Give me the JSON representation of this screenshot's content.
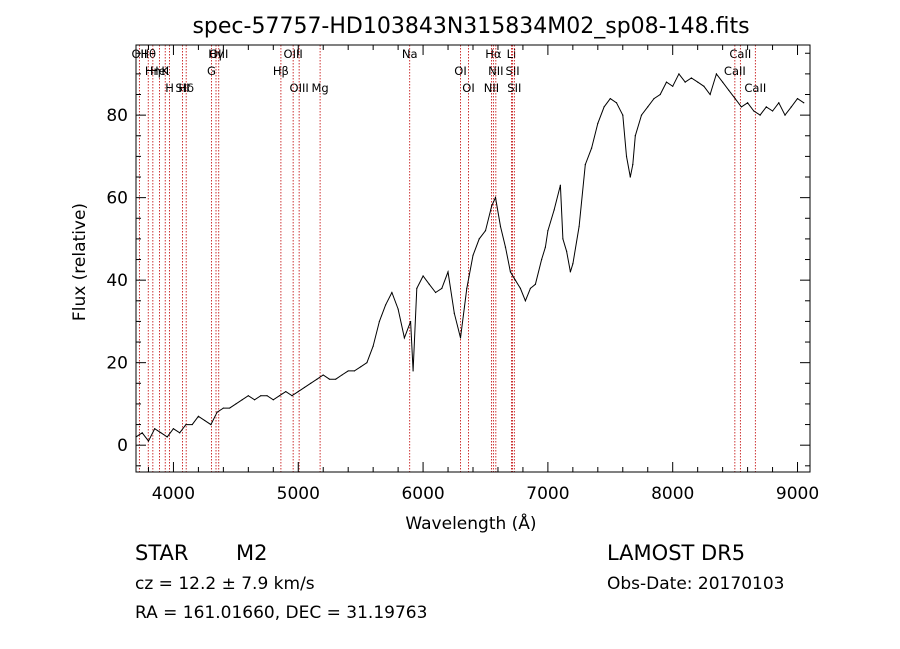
{
  "chart_data": {
    "type": "line",
    "title": "spec-57757-HD103843N315834M02_sp08-148.fits",
    "xlabel": "Wavelength (Å)",
    "ylabel": "Flux (relative)",
    "xlim": [
      3700,
      9100
    ],
    "ylim": [
      -6.5,
      97
    ],
    "xticks": [
      4000,
      5000,
      6000,
      7000,
      8000,
      9000
    ],
    "yticks": [
      0,
      20,
      40,
      60,
      80
    ],
    "series": [
      {
        "x": [
          3700,
          3750,
          3800,
          3850,
          3900,
          3950,
          4000,
          4050,
          4100,
          4150,
          4200,
          4250,
          4300,
          4350,
          4400,
          4450,
          4500,
          4550,
          4600,
          4650,
          4700,
          4750,
          4800,
          4850,
          4900,
          4950,
          5000,
          5050,
          5100,
          5150,
          5200,
          5250,
          5300,
          5350,
          5400,
          5450,
          5500,
          5550,
          5600,
          5650,
          5700,
          5750,
          5800,
          5850,
          5900,
          5920,
          5950,
          6000,
          6050,
          6100,
          6150,
          6200,
          6250,
          6300,
          6350,
          6400,
          6450,
          6500,
          6550,
          6580,
          6620,
          6660,
          6700,
          6740,
          6780,
          6820,
          6860,
          6900,
          6950,
          6980,
          7000,
          7050,
          7100,
          7120,
          7150,
          7180,
          7200,
          7250,
          7300,
          7350,
          7400,
          7450,
          7500,
          7550,
          7600,
          7630,
          7660,
          7680,
          7700,
          7750,
          7800,
          7850,
          7900,
          7950,
          8000,
          8050,
          8100,
          8150,
          8200,
          8250,
          8300,
          8350,
          8400,
          8450,
          8500,
          8550,
          8600,
          8650,
          8700,
          8750,
          8800,
          8850,
          8900,
          8950,
          9000,
          9050
        ],
        "y": [
          2,
          3,
          1,
          4,
          3,
          2,
          4,
          3,
          5,
          5,
          7,
          6,
          5,
          8,
          9,
          9,
          10,
          11,
          12,
          11,
          12,
          12,
          11,
          12,
          13,
          12,
          13,
          14,
          15,
          16,
          17,
          16,
          16,
          17,
          18,
          18,
          19,
          20,
          24,
          30,
          34,
          37,
          33,
          26,
          30,
          18,
          38,
          41,
          39,
          37,
          38,
          42,
          32,
          26,
          38,
          46,
          50,
          52,
          58,
          60,
          53,
          48,
          42,
          40,
          38,
          35,
          38,
          39,
          45,
          48,
          52,
          57,
          63,
          50,
          47,
          42,
          44,
          53,
          68,
          72,
          78,
          82,
          84,
          83,
          80,
          70,
          65,
          68,
          75,
          80,
          82,
          84,
          85,
          88,
          87,
          90,
          88,
          89,
          88,
          87,
          85,
          90,
          88,
          86,
          84,
          82,
          83,
          81,
          80,
          82,
          81,
          83,
          80,
          82,
          84,
          83
        ]
      }
    ],
    "lines": [
      {
        "label": "Hθ",
        "x": 3798
      },
      {
        "label": "K",
        "x": 3934
      },
      {
        "label": "Hδ",
        "x": 4102
      },
      {
        "label": "OII",
        "x": 3727
      },
      {
        "label": "HeI",
        "x": 3889
      },
      {
        "label": "SII",
        "x": 4072
      },
      {
        "label": "OIII",
        "x": 4363
      },
      {
        "label": "Hη",
        "x": 3835
      },
      {
        "label": "H",
        "x": 3969
      },
      {
        "label": "Hγ",
        "x": 4341
      },
      {
        "label": "G",
        "x": 4305
      },
      {
        "label": "OIII",
        "x": 5007
      },
      {
        "label": "OIII",
        "x": 4959
      },
      {
        "label": "Hβ",
        "x": 4861
      },
      {
        "label": "Mg",
        "x": 5175
      },
      {
        "label": "Na",
        "x": 5893
      },
      {
        "label": "OI",
        "x": 6300
      },
      {
        "label": "OI",
        "x": 6364
      },
      {
        "label": "Hα",
        "x": 6563
      },
      {
        "label": "SII",
        "x": 6717
      },
      {
        "label": "NII",
        "x": 6548
      },
      {
        "label": "Li",
        "x": 6708
      },
      {
        "label": "NII",
        "x": 6583
      },
      {
        "label": "SII",
        "x": 6731
      },
      {
        "label": "CaII",
        "x": 8542
      },
      {
        "label": "CaII",
        "x": 8498
      },
      {
        "label": "CaII",
        "x": 8662
      }
    ]
  },
  "info": {
    "star_label": "STAR",
    "subclass": "M2",
    "survey": "LAMOST DR5",
    "cz": "cz = 12.2 ± 7.9 km/s",
    "obs_date": "Obs-Date: 20170103",
    "radec": "RA = 161.01660, DEC =  31.19763"
  }
}
